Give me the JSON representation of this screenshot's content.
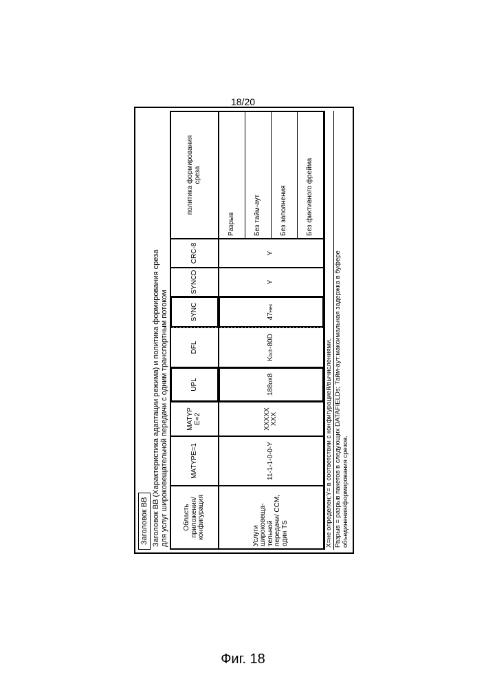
{
  "page_number": "18/20",
  "figure_label": "Фиг. 18",
  "bb_header_label": "Заголовок BB",
  "title": "Заголовок BB (Характеристика адаптации режима) и политика формирования среза\nдля услуг широковещательной передачи с одним транспортным потоком",
  "table": {
    "headers": {
      "col0": "Область\nприложения/\nконфигурация",
      "col1": "MATYPE=1",
      "col2": "MATYP\nE=2",
      "col3": "UPL",
      "col4": "DFL",
      "col5": "SYNC",
      "col6": "SYNCD",
      "col7": "CRC-8",
      "col8": "политика формирования\nсреза"
    },
    "row": {
      "col0": "Услуги\nшироковеща-\nтельной\nпередачи/ CCM,\nодин TS",
      "col1": "11-1-1-0-0-Y",
      "col2": "XXXXX\nXXX",
      "col3_main": "188",
      "col3_sub": "D",
      "col3_suffix": "x8",
      "col4_main": "K",
      "col4_sub": "bch",
      "col4_suffix": "-80D",
      "col5_main": "47",
      "col5_sub": "Hex",
      "col6": "Y",
      "col7": "Y",
      "policies": [
        "Разрыв",
        "Без тайм-аут",
        "Без заполнения",
        "Без фиктивного фрейма"
      ]
    }
  },
  "footnote1": "X=не определен;Y= в соответствии с конфигурацией/вычислениями.",
  "footnote2": "Разрыв = разрыв пакетов в следующих DATAFIELDs; Тайм-аут:максимальная задержка в буфере\nобъединения/формирования срезов."
}
